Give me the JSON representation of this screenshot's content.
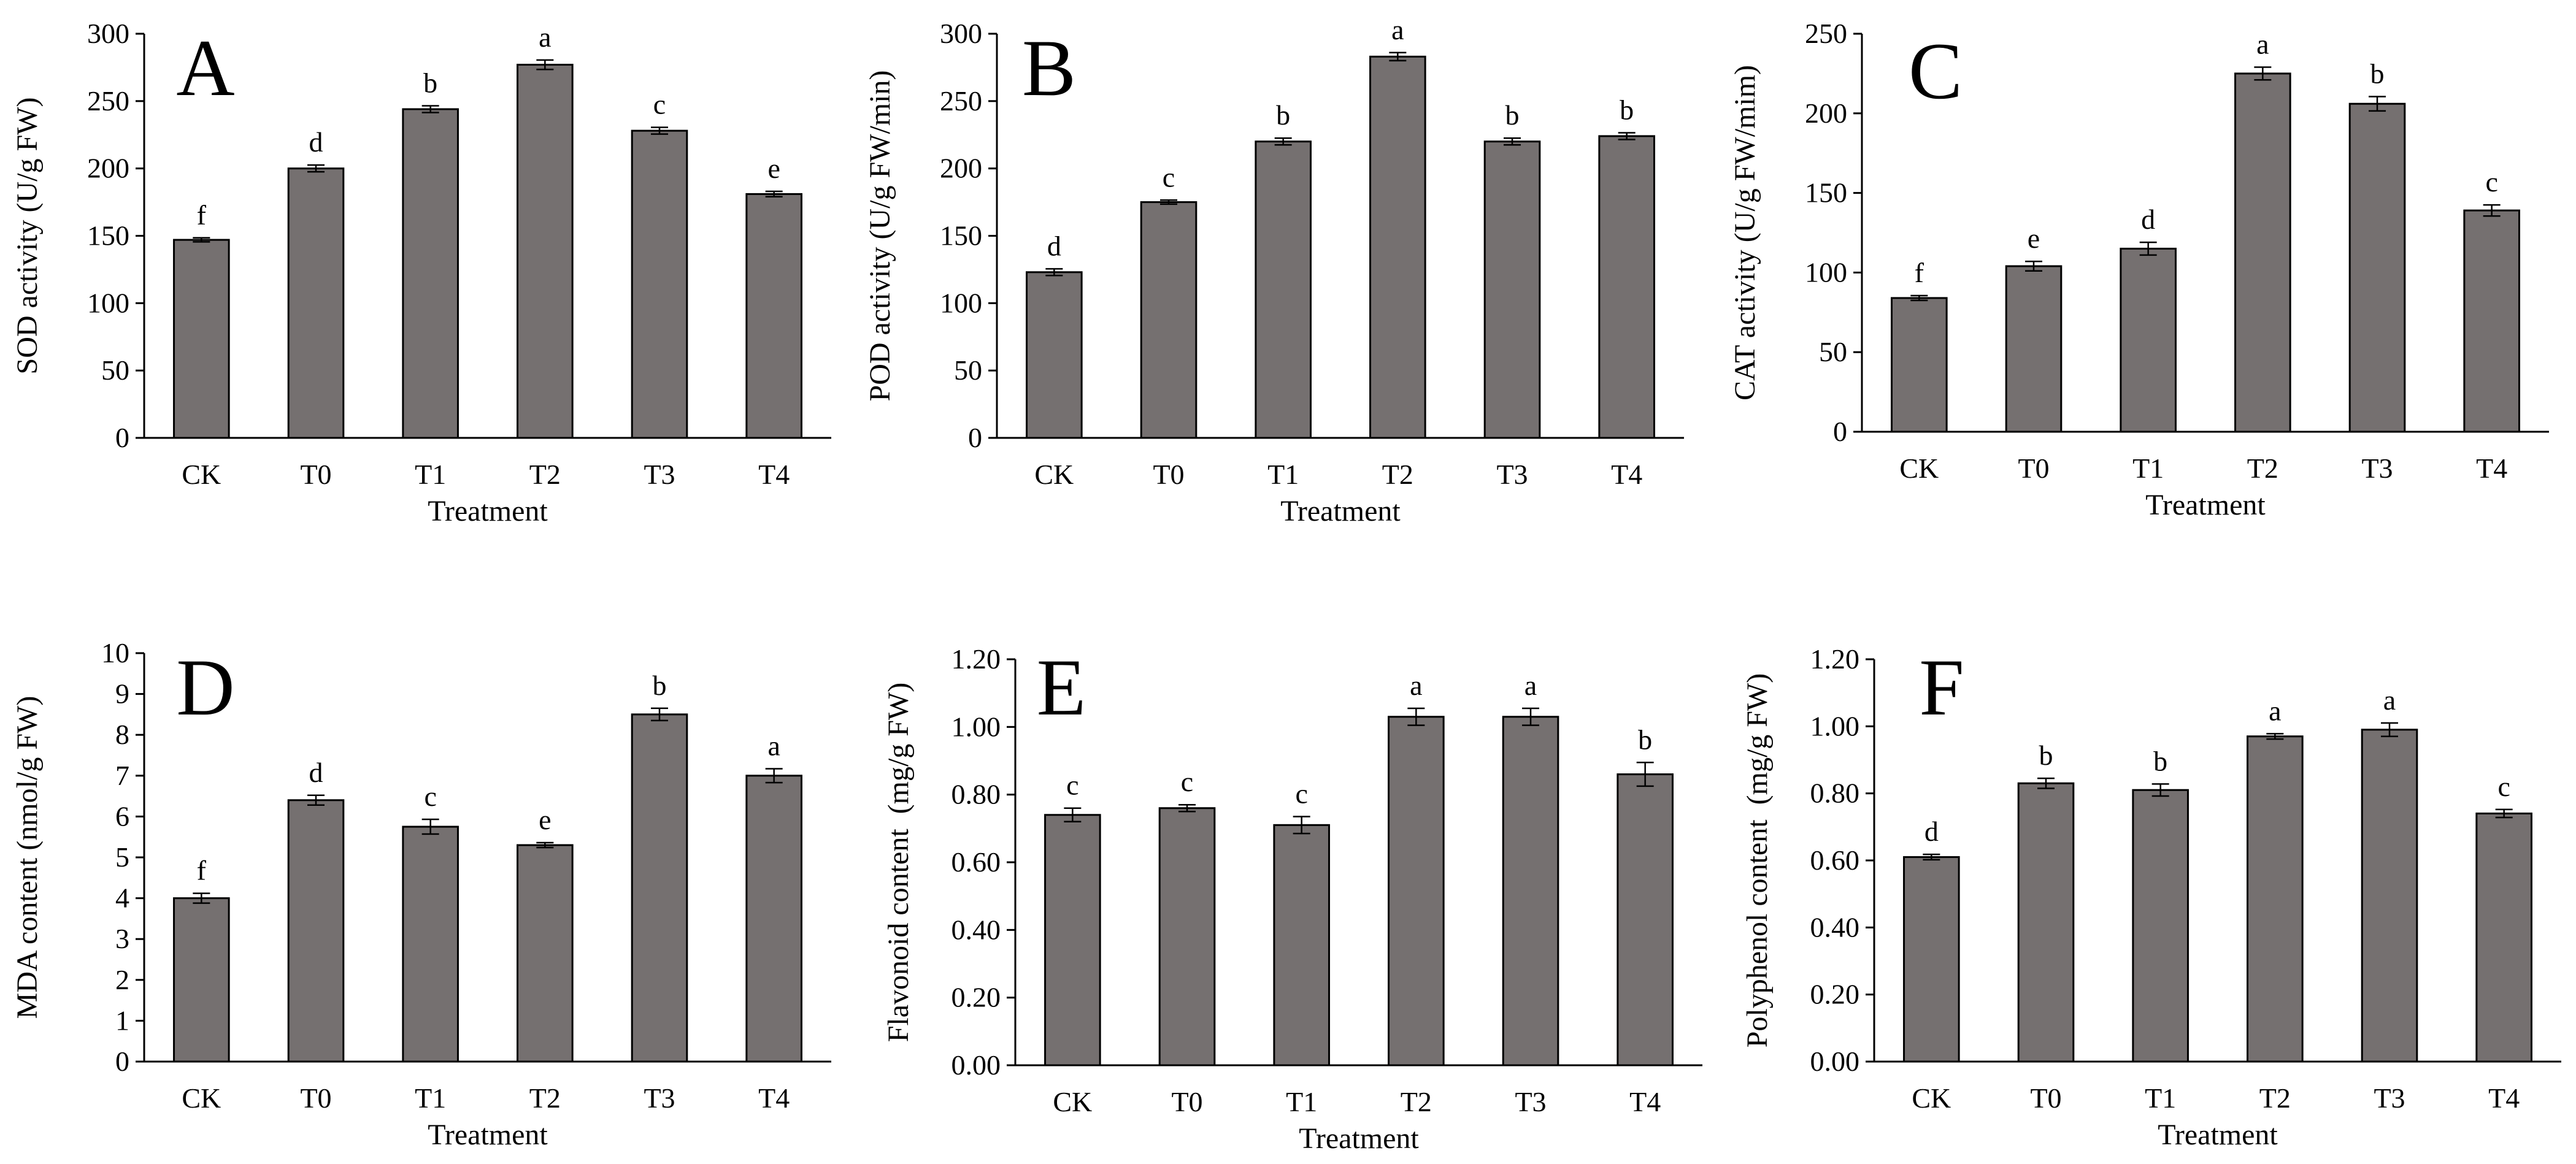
{
  "chart_data": [
    {
      "type": "bar",
      "panel_label": "A",
      "categories": [
        "CK",
        "T0",
        "T1",
        "T2",
        "T3",
        "T4"
      ],
      "values": [
        147,
        200,
        244,
        277,
        228,
        181
      ],
      "errors": [
        1.5,
        2.5,
        2.5,
        3.5,
        2.5,
        2
      ],
      "significance": [
        "f",
        "d",
        "b",
        "a",
        "c",
        "e"
      ],
      "ylabel": "SOD activity (U/g FW)",
      "xlabel": "Treatment",
      "ylim": [
        0,
        300
      ],
      "yticks": [
        0,
        50,
        100,
        150,
        200,
        250,
        300
      ],
      "ytick_labels": [
        "0",
        "50",
        "100",
        "150",
        "200",
        "250",
        "300"
      ],
      "grid": false
    },
    {
      "type": "bar",
      "panel_label": "B",
      "categories": [
        "CK",
        "T0",
        "T1",
        "T2",
        "T3",
        "T4"
      ],
      "values": [
        123,
        175,
        220,
        283,
        220,
        224
      ],
      "errors": [
        2.5,
        1.5,
        2.5,
        3,
        2.5,
        2.5
      ],
      "significance": [
        "d",
        "c",
        "b",
        "a",
        "b",
        "b"
      ],
      "ylabel": "POD activity (U/g FW/min)",
      "xlabel": "Treatment",
      "ylim": [
        0,
        300
      ],
      "yticks": [
        0,
        50,
        100,
        150,
        200,
        250,
        300
      ],
      "ytick_labels": [
        "0",
        "50",
        "100",
        "150",
        "200",
        "250",
        "300"
      ],
      "grid": false
    },
    {
      "type": "bar",
      "panel_label": "C",
      "categories": [
        "CK",
        "T0",
        "T1",
        "T2",
        "T3",
        "T4"
      ],
      "values": [
        84,
        104,
        115,
        225,
        206,
        139
      ],
      "errors": [
        1.5,
        3,
        4,
        4,
        4.5,
        3.5
      ],
      "significance": [
        "f",
        "e",
        "d",
        "a",
        "b",
        "c"
      ],
      "ylabel": "CAT activity (U/g FW/mim)",
      "xlabel": "Treatment",
      "ylim": [
        0,
        250
      ],
      "yticks": [
        0,
        50,
        100,
        150,
        200,
        250
      ],
      "ytick_labels": [
        "0",
        "50",
        "100",
        "150",
        "200",
        "250"
      ],
      "grid": false
    },
    {
      "type": "bar",
      "panel_label": "D",
      "categories": [
        "CK",
        "T0",
        "T1",
        "T2",
        "T3",
        "T4"
      ],
      "values": [
        4.0,
        6.4,
        5.75,
        5.3,
        8.5,
        7.0
      ],
      "errors": [
        0.12,
        0.12,
        0.18,
        0.06,
        0.15,
        0.17
      ],
      "significance": [
        "f",
        "d",
        "c",
        "e",
        "b",
        "a"
      ],
      "ylabel": "MDA content (nmol/g FW)",
      "xlabel": "Treatment",
      "ylim": [
        0,
        10
      ],
      "yticks": [
        0,
        1,
        2,
        3,
        4,
        5,
        6,
        7,
        8,
        9,
        10
      ],
      "ytick_labels": [
        "0",
        "1",
        "2",
        "3",
        "4",
        "5",
        "6",
        "7",
        "8",
        "9",
        "10"
      ],
      "grid": false
    },
    {
      "type": "bar",
      "panel_label": "E",
      "categories": [
        "CK",
        "T0",
        "T1",
        "T2",
        "T3",
        "T4"
      ],
      "values": [
        0.74,
        0.76,
        0.71,
        1.03,
        1.03,
        0.86
      ],
      "errors": [
        0.02,
        0.01,
        0.025,
        0.025,
        0.025,
        0.035
      ],
      "significance": [
        "c",
        "c",
        "c",
        "a",
        "a",
        "b"
      ],
      "ylabel": "Flavonoid content  (mg/g FW)",
      "xlabel": "Treatment",
      "ylim": [
        0,
        1.2
      ],
      "yticks": [
        0,
        0.2,
        0.4,
        0.6,
        0.8,
        1.0,
        1.2
      ],
      "ytick_labels": [
        "0.00",
        "0.20",
        "0.40",
        "0.60",
        "0.80",
        "1.00",
        "1.20"
      ],
      "grid": false
    },
    {
      "type": "bar",
      "panel_label": "F",
      "categories": [
        "CK",
        "T0",
        "T1",
        "T2",
        "T3",
        "T4"
      ],
      "values": [
        0.61,
        0.83,
        0.81,
        0.97,
        0.99,
        0.74
      ],
      "errors": [
        0.008,
        0.015,
        0.018,
        0.008,
        0.02,
        0.012
      ],
      "significance": [
        "d",
        "b",
        "b",
        "a",
        "a",
        "c"
      ],
      "ylabel": "Polyphenol content  (mg/g FW)",
      "xlabel": "Treatment",
      "ylim": [
        0,
        1.2
      ],
      "yticks": [
        0,
        0.2,
        0.4,
        0.6,
        0.8,
        1.0,
        1.2
      ],
      "ytick_labels": [
        "0.00",
        "0.20",
        "0.40",
        "0.60",
        "0.80",
        "1.00",
        "1.20"
      ],
      "grid": false
    }
  ],
  "colors": {
    "bar_fill": "#757070",
    "bar_stroke": "#000000",
    "axis": "#000000",
    "background": "#ffffff"
  }
}
